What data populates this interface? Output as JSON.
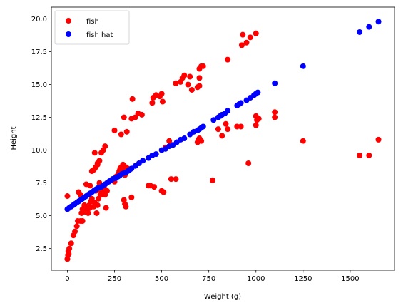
{
  "chart_data": {
    "type": "scatter",
    "title": "",
    "xlabel": "Weight (g)",
    "ylabel": "Height",
    "xlim": [
      -85,
      1735
    ],
    "ylim": [
      0.85,
      20.9
    ],
    "xticks": [
      0,
      250,
      500,
      750,
      1000,
      1250,
      1500
    ],
    "yticks": [
      2.5,
      5.0,
      7.5,
      10.0,
      12.5,
      15.0,
      17.5,
      20.0
    ],
    "xtick_labels": [
      "0",
      "250",
      "500",
      "750",
      "1000",
      "1250",
      "1500"
    ],
    "ytick_labels": [
      "2.5",
      "5.0",
      "7.5",
      "10.0",
      "12.5",
      "15.0",
      "17.5",
      "20.0"
    ],
    "grid": false,
    "legend_position": "top-left",
    "series": [
      {
        "name": "fish",
        "color": "#ff0000",
        "points": [
          [
            0,
            1.7
          ],
          [
            3,
            2.0
          ],
          [
            5,
            2.3
          ],
          [
            7,
            2.1
          ],
          [
            10,
            2.5
          ],
          [
            20,
            2.9
          ],
          [
            32,
            3.5
          ],
          [
            40,
            3.8
          ],
          [
            50,
            4.2
          ],
          [
            55,
            4.6
          ],
          [
            70,
            4.6
          ],
          [
            75,
            5.2
          ],
          [
            80,
            4.6
          ],
          [
            0,
            6.5
          ],
          [
            60,
            6.8
          ],
          [
            70,
            6.6
          ],
          [
            80,
            5.5
          ],
          [
            85,
            5.3
          ],
          [
            90,
            5.8
          ],
          [
            95,
            5.3
          ],
          [
            100,
            5.6
          ],
          [
            105,
            5.4
          ],
          [
            110,
            5.2
          ],
          [
            115,
            5.8
          ],
          [
            120,
            5.6
          ],
          [
            125,
            6.1
          ],
          [
            130,
            6.3
          ],
          [
            140,
            5.7
          ],
          [
            145,
            6.0
          ],
          [
            150,
            6.9
          ],
          [
            155,
            5.2
          ],
          [
            160,
            5.8
          ],
          [
            165,
            6.3
          ],
          [
            170,
            7.0
          ],
          [
            175,
            6.6
          ],
          [
            180,
            6.6
          ],
          [
            185,
            6.8
          ],
          [
            190,
            7.2
          ],
          [
            195,
            7.1
          ],
          [
            200,
            6.6
          ],
          [
            205,
            5.6
          ],
          [
            210,
            6.9
          ],
          [
            100,
            7.4
          ],
          [
            120,
            7.3
          ],
          [
            130,
            8.4
          ],
          [
            140,
            8.5
          ],
          [
            150,
            8.7
          ],
          [
            160,
            9.0
          ],
          [
            170,
            9.2
          ],
          [
            180,
            9.8
          ],
          [
            190,
            10.0
          ],
          [
            200,
            10.3
          ],
          [
            145,
            9.8
          ],
          [
            160,
            8.9
          ],
          [
            170,
            7.5
          ],
          [
            175,
            7.2
          ],
          [
            240,
            7.8
          ],
          [
            250,
            7.6
          ],
          [
            260,
            8.0
          ],
          [
            270,
            8.2
          ],
          [
            275,
            8.4
          ],
          [
            280,
            8.6
          ],
          [
            285,
            8.7
          ],
          [
            290,
            8.5
          ],
          [
            295,
            8.9
          ],
          [
            300,
            8.8
          ],
          [
            305,
            8.1
          ],
          [
            310,
            8.7
          ],
          [
            320,
            8.6
          ],
          [
            300,
            6.2
          ],
          [
            305,
            5.9
          ],
          [
            310,
            5.7
          ],
          [
            340,
            6.4
          ],
          [
            250,
            11.5
          ],
          [
            285,
            11.2
          ],
          [
            300,
            12.5
          ],
          [
            315,
            11.4
          ],
          [
            340,
            12.4
          ],
          [
            345,
            13.9
          ],
          [
            360,
            12.5
          ],
          [
            375,
            12.8
          ],
          [
            395,
            12.7
          ],
          [
            430,
            7.3
          ],
          [
            440,
            7.3
          ],
          [
            460,
            7.2
          ],
          [
            500,
            6.9
          ],
          [
            510,
            6.8
          ],
          [
            450,
            13.6
          ],
          [
            455,
            14.0
          ],
          [
            470,
            14.2
          ],
          [
            490,
            14.1
          ],
          [
            500,
            14.3
          ],
          [
            505,
            13.7
          ],
          [
            520,
            10.2
          ],
          [
            540,
            10.7
          ],
          [
            550,
            7.8
          ],
          [
            575,
            7.8
          ],
          [
            575,
            15.1
          ],
          [
            600,
            15.2
          ],
          [
            610,
            15.5
          ],
          [
            620,
            15.7
          ],
          [
            640,
            15.0
          ],
          [
            650,
            15.6
          ],
          [
            660,
            14.6
          ],
          [
            700,
            15.5
          ],
          [
            700,
            16.2
          ],
          [
            710,
            16.4
          ],
          [
            720,
            16.4
          ],
          [
            690,
            14.8
          ],
          [
            700,
            14.9
          ],
          [
            690,
            10.6
          ],
          [
            695,
            10.8
          ],
          [
            700,
            10.9
          ],
          [
            710,
            10.7
          ],
          [
            770,
            7.7
          ],
          [
            800,
            11.6
          ],
          [
            820,
            11.1
          ],
          [
            840,
            12.0
          ],
          [
            850,
            11.6
          ],
          [
            850,
            16.9
          ],
          [
            900,
            11.8
          ],
          [
            920,
            11.8
          ],
          [
            925,
            18.0
          ],
          [
            930,
            18.8
          ],
          [
            950,
            18.2
          ],
          [
            960,
            9.0
          ],
          [
            970,
            18.6
          ],
          [
            1000,
            18.9
          ],
          [
            1000,
            12.6
          ],
          [
            1005,
            12.3
          ],
          [
            1015,
            12.4
          ],
          [
            1000,
            11.9
          ],
          [
            1100,
            12.9
          ],
          [
            1100,
            12.5
          ],
          [
            1250,
            10.7
          ],
          [
            1550,
            9.6
          ],
          [
            1600,
            9.6
          ],
          [
            1650,
            10.8
          ]
        ]
      },
      {
        "name": "fish hat",
        "color": "#0000ff",
        "points": [
          [
            0,
            5.5
          ],
          [
            10,
            5.6
          ],
          [
            20,
            5.7
          ],
          [
            30,
            5.8
          ],
          [
            40,
            5.9
          ],
          [
            50,
            6.0
          ],
          [
            60,
            6.1
          ],
          [
            70,
            6.2
          ],
          [
            80,
            6.3
          ],
          [
            90,
            6.4
          ],
          [
            100,
            6.5
          ],
          [
            110,
            6.6
          ],
          [
            120,
            6.7
          ],
          [
            130,
            6.8
          ],
          [
            140,
            6.9
          ],
          [
            150,
            7.0
          ],
          [
            160,
            7.1
          ],
          [
            170,
            7.15
          ],
          [
            180,
            7.2
          ],
          [
            190,
            7.3
          ],
          [
            200,
            7.4
          ],
          [
            210,
            7.5
          ],
          [
            220,
            7.6
          ],
          [
            230,
            7.7
          ],
          [
            240,
            7.8
          ],
          [
            250,
            7.85
          ],
          [
            260,
            7.9
          ],
          [
            270,
            8.0
          ],
          [
            280,
            8.1
          ],
          [
            290,
            8.2
          ],
          [
            300,
            8.25
          ],
          [
            310,
            8.3
          ],
          [
            320,
            8.4
          ],
          [
            330,
            8.5
          ],
          [
            340,
            8.6
          ],
          [
            360,
            8.8
          ],
          [
            380,
            9.0
          ],
          [
            400,
            9.2
          ],
          [
            430,
            9.4
          ],
          [
            450,
            9.6
          ],
          [
            470,
            9.7
          ],
          [
            500,
            10.0
          ],
          [
            520,
            10.1
          ],
          [
            540,
            10.3
          ],
          [
            560,
            10.4
          ],
          [
            580,
            10.6
          ],
          [
            600,
            10.8
          ],
          [
            620,
            10.9
          ],
          [
            650,
            11.2
          ],
          [
            670,
            11.4
          ],
          [
            690,
            11.5
          ],
          [
            700,
            11.6
          ],
          [
            710,
            11.7
          ],
          [
            720,
            11.8
          ],
          [
            775,
            12.3
          ],
          [
            800,
            12.5
          ],
          [
            810,
            12.6
          ],
          [
            820,
            12.7
          ],
          [
            835,
            12.8
          ],
          [
            850,
            13.0
          ],
          [
            900,
            13.4
          ],
          [
            910,
            13.5
          ],
          [
            920,
            13.6
          ],
          [
            950,
            13.8
          ],
          [
            970,
            14.0
          ],
          [
            990,
            14.2
          ],
          [
            1000,
            14.3
          ],
          [
            1010,
            14.4
          ],
          [
            1100,
            15.1
          ],
          [
            1250,
            16.4
          ],
          [
            1550,
            19.0
          ],
          [
            1600,
            19.4
          ],
          [
            1650,
            19.8
          ]
        ]
      }
    ]
  }
}
